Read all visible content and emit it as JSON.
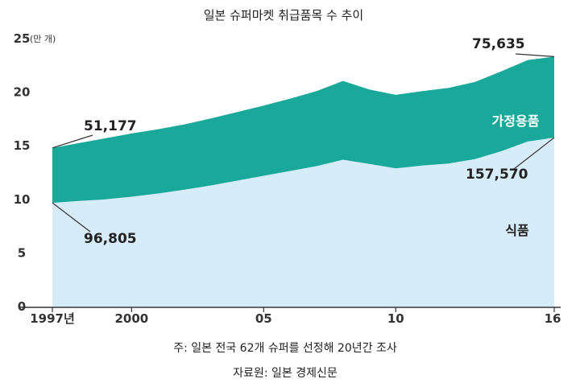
{
  "chart_data": {
    "type": "area",
    "title": "일본 슈퍼마켓 취급품목 수 추이",
    "unit_label": "(만 개)",
    "x": [
      1997,
      1998,
      1999,
      2000,
      2001,
      2002,
      2003,
      2004,
      2005,
      2006,
      2007,
      2008,
      2009,
      2010,
      2011,
      2012,
      2013,
      2014,
      2015,
      2016
    ],
    "x_tick_values": [
      1997,
      2000,
      2005,
      2010,
      2016
    ],
    "x_tick_labels": [
      "1997년",
      "2000",
      "05",
      "10",
      "16"
    ],
    "y_ticks": [
      0,
      5,
      10,
      15,
      20,
      25
    ],
    "ylim": [
      0,
      25
    ],
    "stacked": true,
    "series": [
      {
        "name": "식품",
        "color": "#d6ecf9",
        "values": [
          9.68,
          9.85,
          10.0,
          10.25,
          10.55,
          10.9,
          11.3,
          11.75,
          12.2,
          12.65,
          13.1,
          13.7,
          13.3,
          12.9,
          13.15,
          13.35,
          13.75,
          14.5,
          15.4,
          15.76
        ]
      },
      {
        "name": "가정용품",
        "color": "#1aa89a",
        "values": [
          5.12,
          5.4,
          5.7,
          5.9,
          6.0,
          6.1,
          6.25,
          6.4,
          6.55,
          6.75,
          7.0,
          7.35,
          6.95,
          6.85,
          6.95,
          7.05,
          7.2,
          7.45,
          7.6,
          7.56
        ]
      }
    ],
    "annotations": [
      {
        "text": "51,177",
        "series": "가정용품",
        "x": 1997
      },
      {
        "text": "96,805",
        "series": "식품",
        "x": 1997
      },
      {
        "text": "75,635",
        "series": "가정용품",
        "x": 2016
      },
      {
        "text": "157,570",
        "series": "식품",
        "x": 2016
      }
    ],
    "grid": false
  },
  "notes": {
    "footnote": "주: 일본 전국 62개 슈퍼를 선정해 20년간 조사",
    "source": "자료원: 일본 경제신문"
  }
}
